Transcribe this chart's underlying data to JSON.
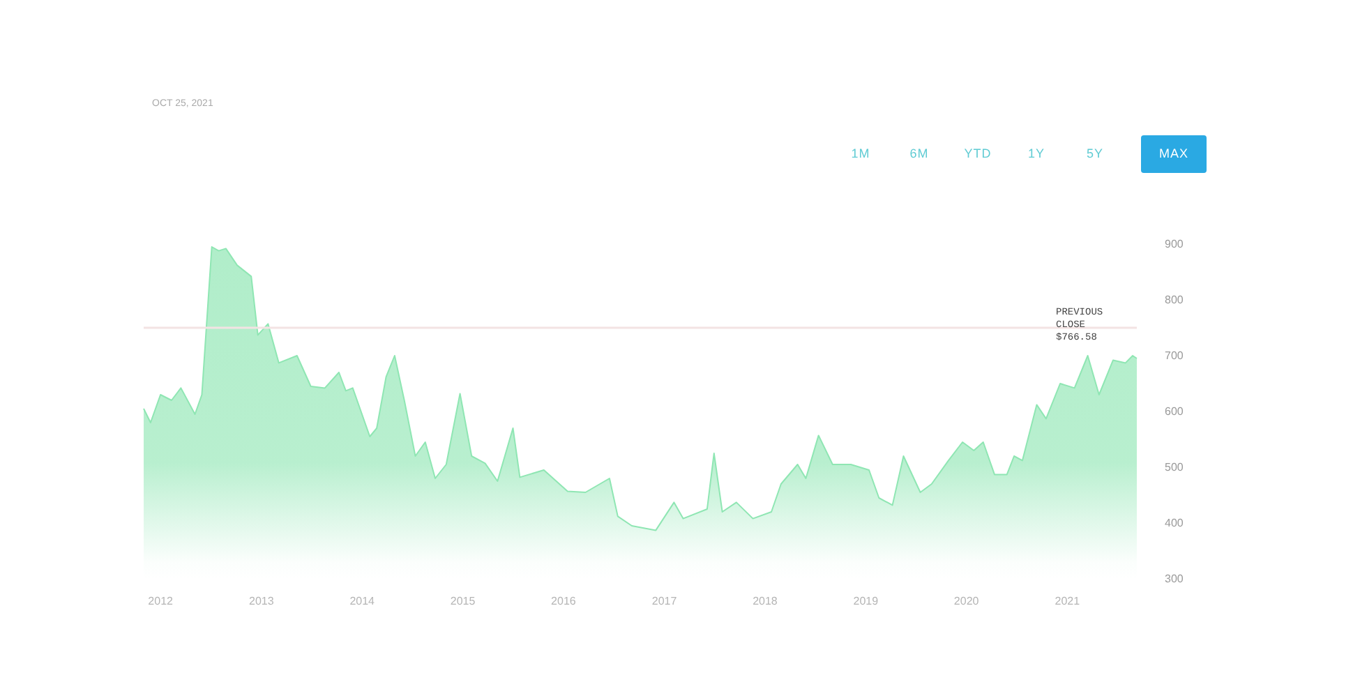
{
  "chart_data": {
    "type": "area",
    "subtitle": "OCT 25, 2021",
    "annotations": [
      "1M",
      "6M",
      "YTD",
      "1Y",
      "5Y",
      "MAX"
    ],
    "x": [
      "2011-11-01",
      "2011-11-26",
      "2012-01-01",
      "2012-02-10",
      "2012-03-15",
      "2012-05-05",
      "2012-05-30",
      "2012-07-05",
      "2012-07-30",
      "2012-08-25",
      "2012-10-05",
      "2012-11-25",
      "2012-12-19",
      "2013-01-25",
      "2013-03-05",
      "2013-05-10",
      "2013-06-29",
      "2013-08-19",
      "2013-10-09",
      "2013-11-03",
      "2013-11-28",
      "2014-01-29",
      "2014-02-23",
      "2014-03-29",
      "2014-04-29",
      "2014-06-03",
      "2014-07-13",
      "2014-08-18",
      "2014-09-23",
      "2014-11-02",
      "2014-12-22",
      "2015-02-02",
      "2015-03-23",
      "2015-05-07",
      "2015-07-02",
      "2015-07-27",
      "2015-10-22",
      "2016-01-16",
      "2016-03-21",
      "2016-06-16",
      "2016-07-16",
      "2016-09-05",
      "2016-12-01",
      "2017-02-05",
      "2017-03-10",
      "2017-06-05",
      "2017-06-30",
      "2017-07-30",
      "2017-09-19",
      "2017-11-18",
      "2018-01-24",
      "2018-02-28",
      "2018-04-29",
      "2018-05-29",
      "2018-07-14",
      "2018-09-03",
      "2018-11-08",
      "2019-01-13",
      "2019-02-18",
      "2019-04-08",
      "2019-05-18",
      "2019-07-18",
      "2019-08-28",
      "2019-10-28",
      "2019-12-18",
      "2020-01-28",
      "2020-03-02",
      "2020-04-12",
      "2020-05-27",
      "2020-06-22",
      "2020-07-22",
      "2020-09-12",
      "2020-10-16",
      "2020-12-06",
      "2021-01-27",
      "2021-03-16",
      "2021-04-26",
      "2021-06-16",
      "2021-07-31",
      "2021-08-26",
      "2021-09-10"
    ],
    "values": [
      605,
      580,
      630,
      620,
      642,
      595,
      630,
      895,
      888,
      892,
      862,
      842,
      737,
      757,
      687,
      700,
      645,
      642,
      670,
      637,
      642,
      555,
      570,
      662,
      700,
      620,
      520,
      545,
      480,
      505,
      632,
      520,
      507,
      475,
      570,
      482,
      495,
      457,
      455,
      480,
      412,
      395,
      387,
      437,
      408,
      425,
      525,
      420,
      437,
      408,
      420,
      470,
      505,
      480,
      557,
      505,
      505,
      495,
      445,
      432,
      520,
      455,
      470,
      512,
      545,
      530,
      545,
      487,
      487,
      520,
      512,
      612,
      587,
      650,
      642,
      700,
      630,
      692,
      687,
      700,
      695
    ],
    "color": "#8fe6b3",
    "xlim": [
      "2011-11-01",
      "2021-09-10"
    ],
    "xticks": [
      "2012",
      "2013",
      "2014",
      "2015",
      "2016",
      "2017",
      "2018",
      "2019",
      "2020",
      "2021"
    ],
    "ylim": [
      300,
      900
    ],
    "yticks": [
      300,
      400,
      500,
      600,
      700,
      800,
      900
    ],
    "ref_lines": [
      {
        "axis": "y",
        "value": 750,
        "label": "PREVIOUS CLOSE $766.58",
        "color": "#f3e3e3",
        "line_style": "solid"
      }
    ],
    "grid": false
  }
}
